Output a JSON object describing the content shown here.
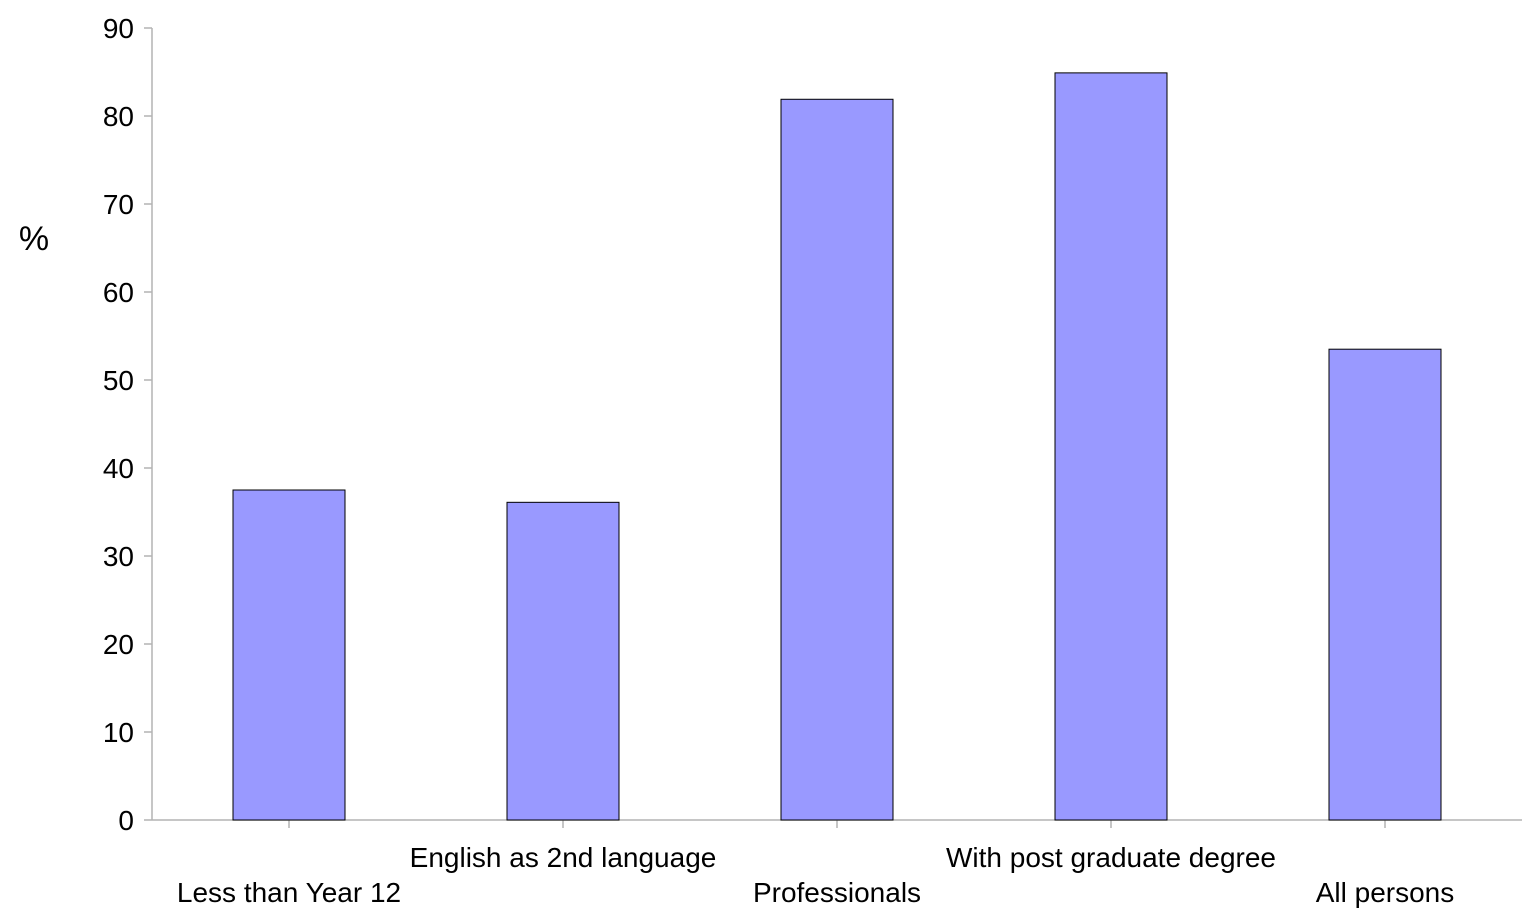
{
  "chart_data": {
    "type": "bar",
    "title": "",
    "xlabel": "",
    "ylabel": "%",
    "ylim": [
      0,
      90
    ],
    "yticks": [
      0,
      10,
      20,
      30,
      40,
      50,
      60,
      70,
      80,
      90
    ],
    "categories": [
      "Less than Year 12",
      "English as 2nd language",
      "Professionals",
      "With post graduate degree",
      "All persons"
    ],
    "values": [
      37.5,
      36.1,
      81.9,
      84.9,
      53.5
    ],
    "grid": false,
    "legend": "none",
    "bar_color": "#9999ff",
    "bar_edge_color": "#000000",
    "axis_color": "#b3b3b3"
  }
}
